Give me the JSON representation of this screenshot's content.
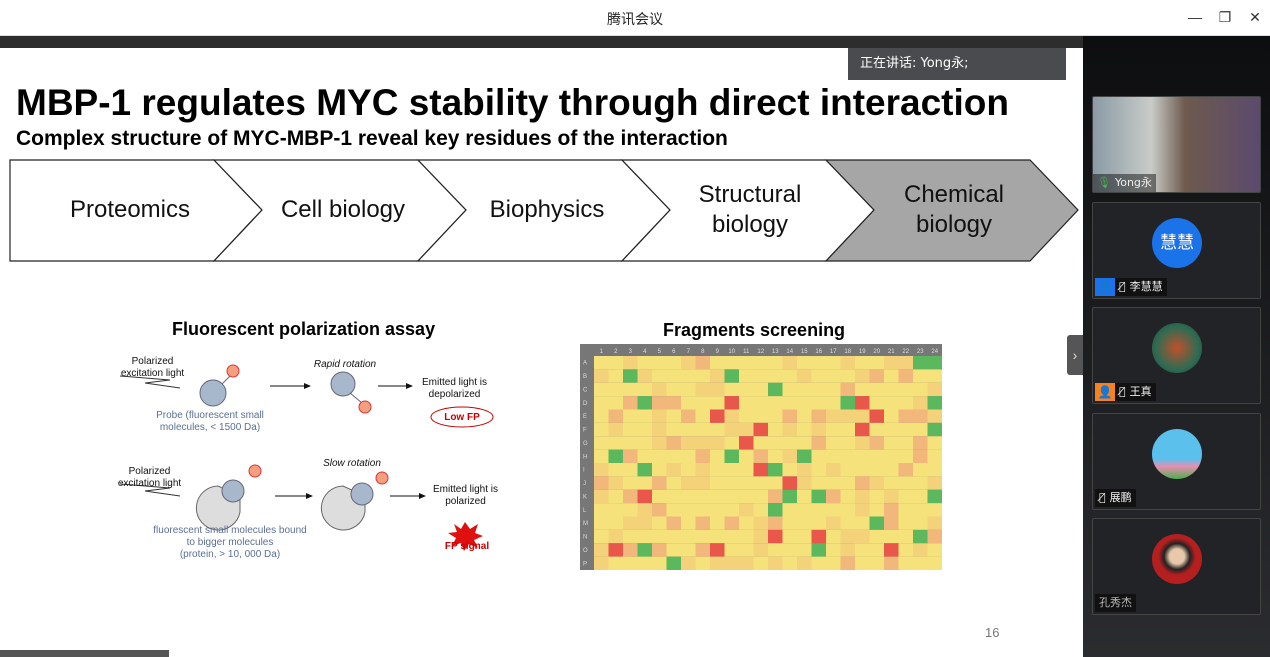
{
  "window": {
    "title": "腾讯会议",
    "controls": [
      "—",
      "❐",
      "✕"
    ]
  },
  "speaking": "正在讲话: Yong永;",
  "slide": {
    "title": "MBP-1 regulates MYC stability through direct interaction",
    "subtitle": "Complex structure of MYC-MBP-1 reveal key residues of the interaction",
    "steps": [
      "Proteomics",
      "Cell biology",
      "Biophysics",
      "Structural\nbiology",
      "Chemical\nbiology"
    ],
    "fp": {
      "title": "Fluorescent polarization assay",
      "pol1": "Polarized\nexcitation light",
      "probe": "Probe (fluorescent small\nmolecules, < 1500 Da)",
      "rapid": "Rapid rotation",
      "emit1": "Emitted light is\ndepolarized",
      "low": "Low FP",
      "pol2": "Polarized\nexcitation light",
      "bound": "fluorescent small molecules bound\nto bigger molecules\n(protein,  > 10, 000 Da)",
      "slow": "Slow rotation",
      "emit2": "Emitted light is\npolarized",
      "signal": "FP signal"
    },
    "screening": {
      "title": "Fragments screening",
      "columns": 24,
      "rows": [
        "A",
        "B",
        "C",
        "D",
        "E",
        "F",
        "G",
        "H",
        "I",
        "J",
        "K",
        "L",
        "M",
        "N",
        "O",
        "P"
      ],
      "colors": {
        "high": "#5cb85c",
        "mid": "#f5e27a",
        "low": "#e8574a"
      }
    },
    "page": "16"
  },
  "participants": [
    {
      "name": "Yong永",
      "mic": "on"
    },
    {
      "name": "李慧慧",
      "avatar_text": "慧慧",
      "badge_color": "#1a73e8",
      "mic": "muted"
    },
    {
      "name": "王真",
      "badge_color": "#f58220",
      "mic": "muted"
    },
    {
      "name": "展鹏",
      "mic": "muted"
    },
    {
      "name": "孔秀杰"
    }
  ],
  "collapse": "›"
}
